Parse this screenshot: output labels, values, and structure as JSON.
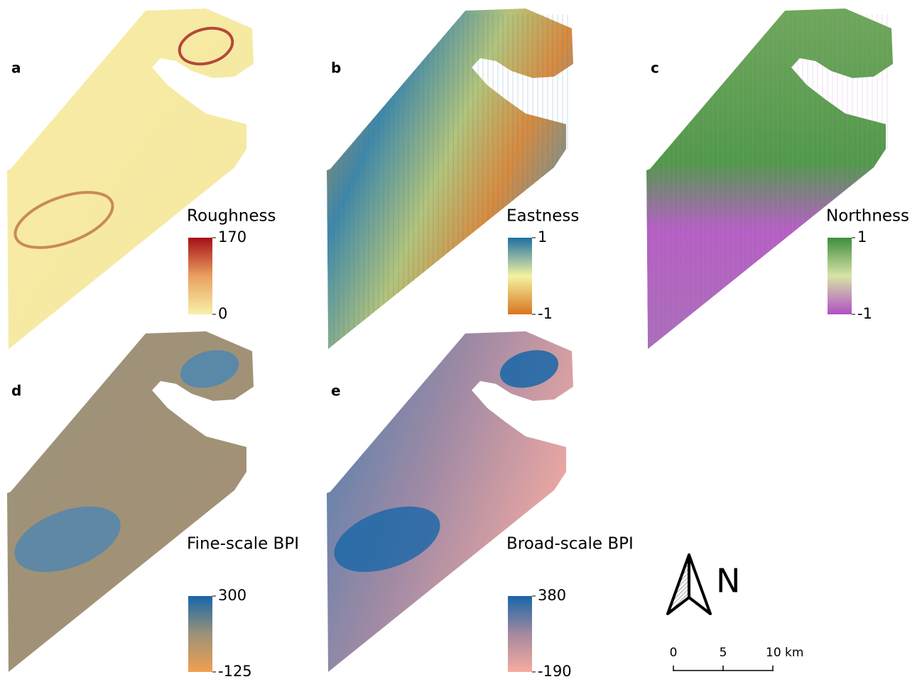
{
  "panels": [
    {
      "letter": "a",
      "legend": {
        "title": "Roughness",
        "max": 170,
        "min": 0
      }
    },
    {
      "letter": "b",
      "legend": {
        "title": "Eastness",
        "max": 1,
        "min": -1
      }
    },
    {
      "letter": "c",
      "legend": {
        "title": "Northness",
        "max": 1,
        "min": -1
      }
    },
    {
      "letter": "d",
      "legend": {
        "title": "Fine-scale BPI",
        "max": 300,
        "min": -125
      }
    },
    {
      "letter": "e",
      "legend": {
        "title": "Broad-scale BPI",
        "max": 380,
        "min": -190
      }
    }
  ],
  "north_arrow": {
    "label": "N"
  },
  "scale_bar": {
    "labels": [
      "0",
      "5",
      "10 km"
    ]
  }
}
